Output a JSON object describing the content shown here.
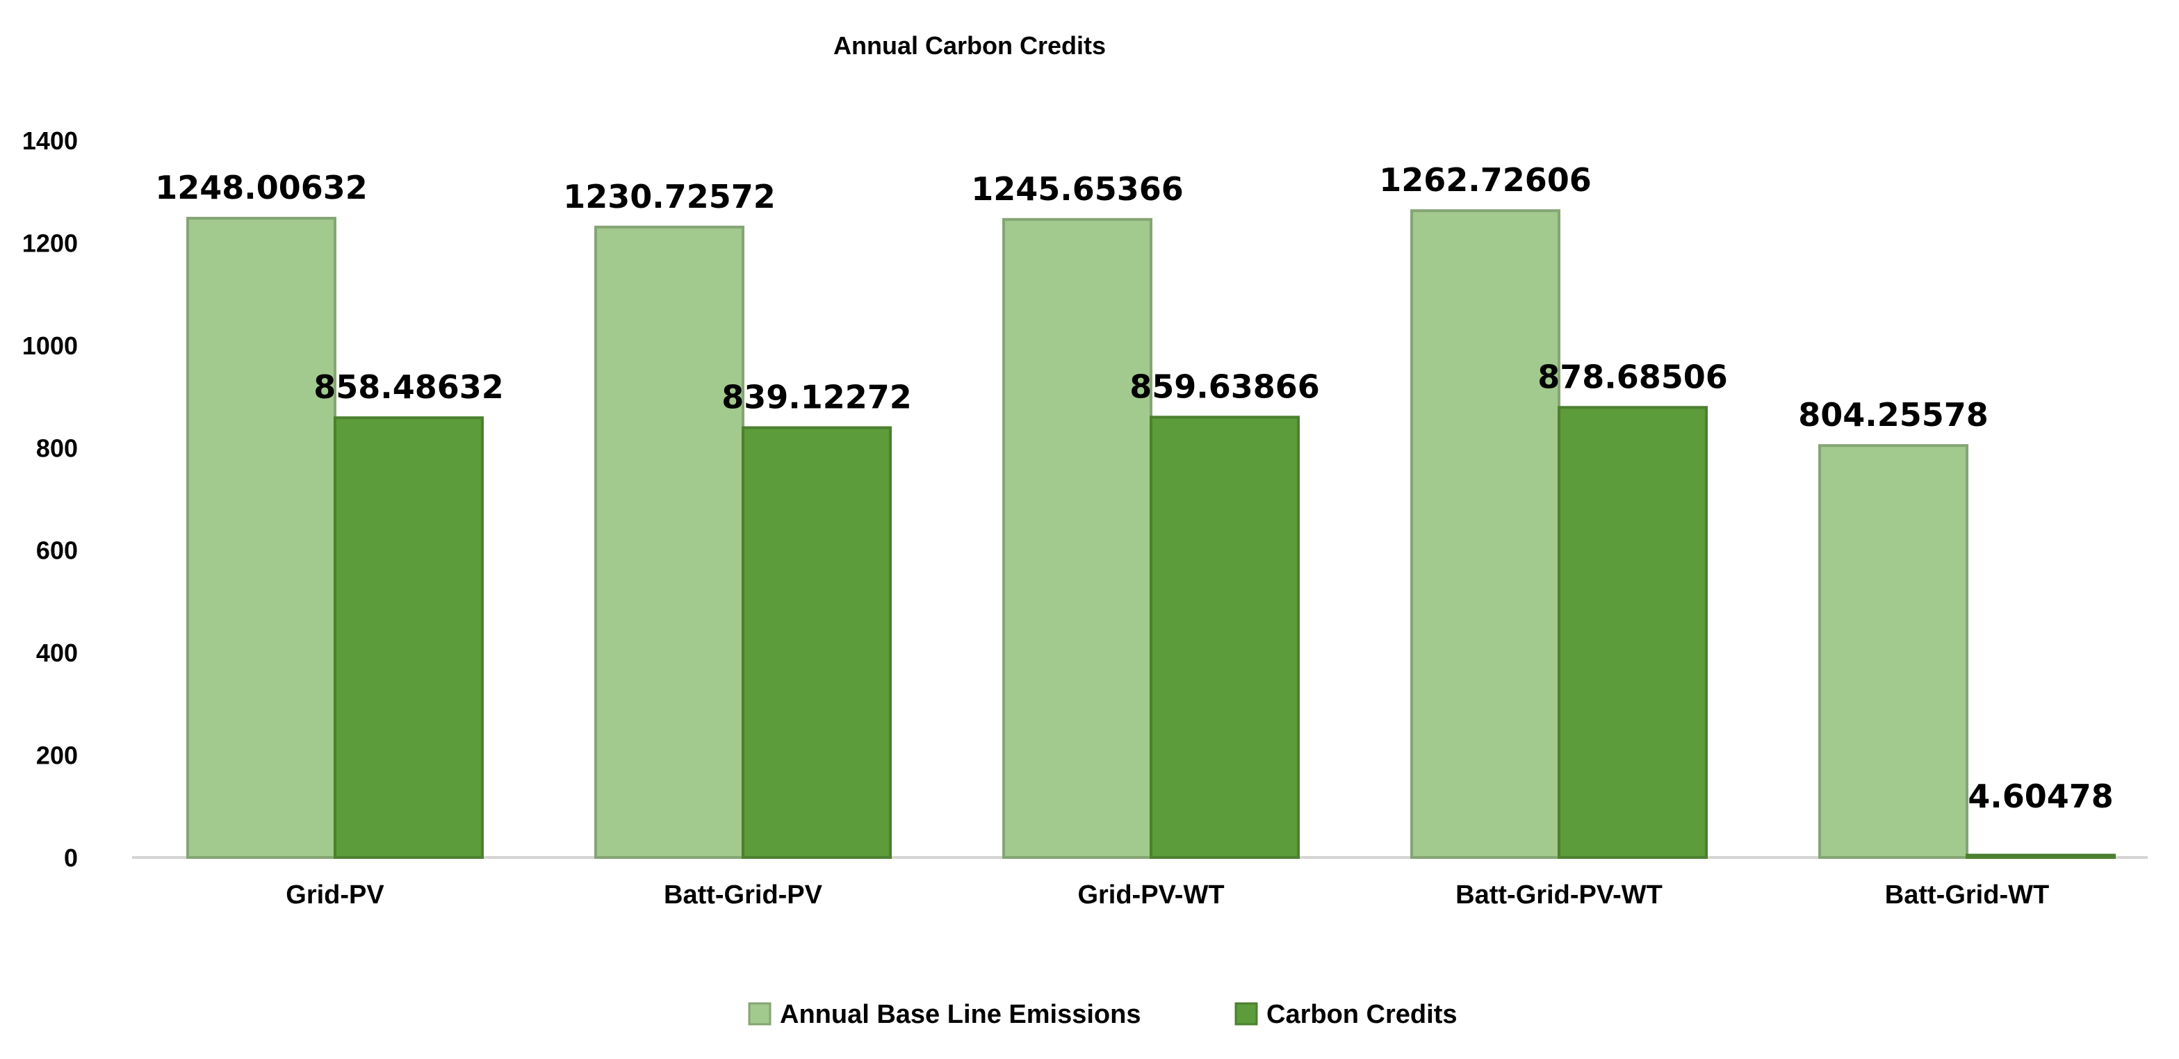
{
  "chart_data": {
    "type": "bar",
    "title": "Annual Carbon Credits",
    "xlabel": "",
    "ylabel": "",
    "ylim": [
      0,
      1400
    ],
    "yticks": [
      0,
      200,
      400,
      600,
      800,
      1000,
      1200,
      1400
    ],
    "grid": false,
    "legend": "bottom",
    "categories": [
      "Grid-PV",
      "Batt-Grid-PV",
      "Grid-PV-WT",
      "Batt-Grid-PV-WT",
      "Batt-Grid-WT"
    ],
    "series": [
      {
        "name": "Annual Base Line Emissions",
        "color": "#a2c98e",
        "values": [
          1248.00632,
          1230.72572,
          1245.65366,
          1262.72606,
          804.25578
        ],
        "labels": [
          "1248.00632",
          "1230.72572",
          "1245.65366",
          "1262.72606",
          "804.25578"
        ]
      },
      {
        "name": "Carbon Credits",
        "color": "#5d9c3a",
        "values": [
          858.48632,
          839.12272,
          859.63866,
          878.68506,
          4.60478
        ],
        "labels": [
          "858.48632",
          "839.12272",
          "859.63866",
          "878.68506",
          "4.60478"
        ]
      }
    ]
  }
}
